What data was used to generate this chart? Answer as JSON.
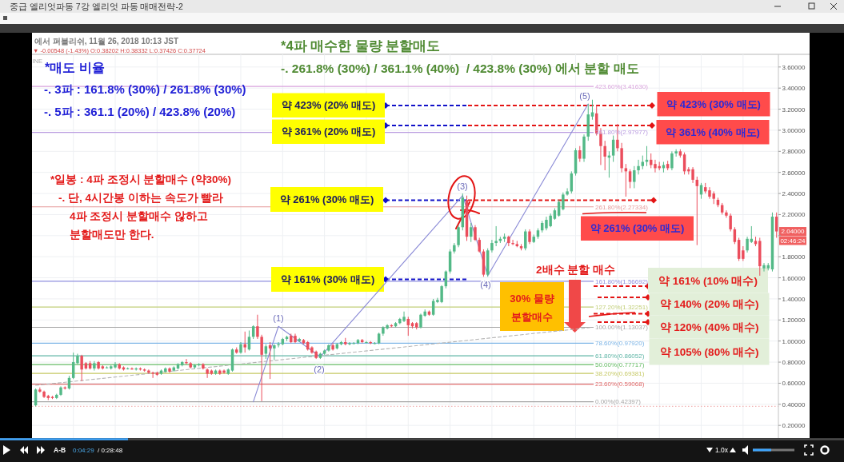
{
  "chart_data": {
    "type": "candlestick",
    "title": "*4파 매수한 물량 분할매도",
    "subtitle": "-. 261.8% (30%) / 361.1% (40%)  / 423.8% (30%) 에서 분할 매도",
    "categories": [
      null,
      null,
      null,
      null,
      null,
      null,
      null,
      null,
      null,
      null,
      null,
      null,
      null,
      null,
      null,
      null,
      null,
      null,
      null,
      null,
      null,
      null,
      null,
      null,
      null,
      null,
      null,
      null,
      null,
      null,
      null,
      null,
      null,
      null,
      null,
      null,
      null,
      null,
      null,
      null,
      null,
      null,
      null,
      null,
      null,
      null,
      null,
      null,
      null,
      null,
      null,
      null,
      null,
      null,
      null,
      null,
      null,
      null,
      null,
      null,
      null,
      null,
      null,
      null,
      null,
      null,
      null,
      null,
      null,
      null,
      null,
      null,
      null,
      null,
      null,
      null,
      null,
      null,
      null,
      null,
      null,
      null,
      null,
      null,
      null,
      null,
      null,
      null,
      null,
      null,
      null,
      null,
      null,
      null,
      null,
      null,
      null,
      null,
      null,
      null,
      null,
      null,
      null,
      null,
      null,
      null,
      null,
      null,
      null,
      null,
      null,
      null,
      null,
      null,
      null,
      null,
      null,
      null,
      null,
      null,
      null,
      null,
      null,
      null,
      null,
      null,
      null,
      null,
      null,
      null,
      null,
      null,
      null,
      null,
      null,
      null,
      null,
      null,
      null,
      null,
      null,
      null,
      null,
      null,
      null,
      null,
      null,
      null,
      null,
      null,
      null,
      null,
      null,
      null,
      null,
      null,
      null,
      null,
      null,
      null,
      null,
      null,
      null,
      null,
      null,
      null,
      null,
      null,
      null,
      null,
      null,
      null,
      null,
      null,
      null,
      null,
      null,
      null
    ],
    "ohlc": [
      [
        0.39,
        0.55,
        0.38,
        0.54
      ],
      [
        0.54,
        0.56,
        0.51,
        0.52
      ],
      [
        0.52,
        0.53,
        0.46,
        0.47
      ],
      [
        0.48,
        0.49,
        0.44,
        0.46
      ],
      [
        0.47,
        0.48,
        0.45,
        0.46
      ],
      [
        0.46,
        0.5,
        0.45,
        0.49
      ],
      [
        0.49,
        0.57,
        0.48,
        0.56
      ],
      [
        0.56,
        0.57,
        0.54,
        0.55
      ],
      [
        0.55,
        0.67,
        0.54,
        0.65
      ],
      [
        0.65,
        0.89,
        0.64,
        0.8
      ],
      [
        0.79,
        0.88,
        0.78,
        0.86
      ],
      [
        0.86,
        0.87,
        0.62,
        0.73
      ],
      [
        0.79,
        0.8,
        0.73,
        0.74
      ],
      [
        0.79,
        0.81,
        0.73,
        0.74
      ],
      [
        0.74,
        0.81,
        0.72,
        0.79
      ],
      [
        0.8,
        0.81,
        0.73,
        0.74
      ],
      [
        0.76,
        0.77,
        0.73,
        0.74
      ],
      [
        0.75,
        0.76,
        0.74,
        0.75
      ],
      [
        0.74,
        0.77,
        0.73,
        0.76
      ],
      [
        0.75,
        0.8,
        0.74,
        0.78
      ],
      [
        0.78,
        0.79,
        0.73,
        0.74
      ],
      [
        0.75,
        0.76,
        0.72,
        0.73
      ],
      [
        0.74,
        0.75,
        0.73,
        0.74
      ],
      [
        0.74,
        0.75,
        0.73,
        0.73
      ],
      [
        0.73,
        0.75,
        0.72,
        0.74
      ],
      [
        0.74,
        0.75,
        0.72,
        0.73
      ],
      [
        0.73,
        0.74,
        0.71,
        0.72
      ],
      [
        0.72,
        0.73,
        0.69,
        0.7
      ],
      [
        0.7,
        0.71,
        0.65,
        0.69
      ],
      [
        0.7,
        0.71,
        0.67,
        0.68
      ],
      [
        0.69,
        0.73,
        0.68,
        0.72
      ],
      [
        0.71,
        0.75,
        0.7,
        0.74
      ],
      [
        0.74,
        0.75,
        0.7,
        0.71
      ],
      [
        0.72,
        0.76,
        0.71,
        0.75
      ],
      [
        0.74,
        0.79,
        0.73,
        0.78
      ],
      [
        0.77,
        0.81,
        0.76,
        0.8
      ],
      [
        0.8,
        0.83,
        0.78,
        0.79
      ],
      [
        0.79,
        0.8,
        0.74,
        0.75
      ],
      [
        0.75,
        0.78,
        0.74,
        0.77
      ],
      [
        0.77,
        0.79,
        0.76,
        0.78
      ],
      [
        0.78,
        0.79,
        0.73,
        0.74
      ],
      [
        0.73,
        0.74,
        0.65,
        0.69
      ],
      [
        0.72,
        0.73,
        0.68,
        0.69
      ],
      [
        0.69,
        0.73,
        0.68,
        0.72
      ],
      [
        0.72,
        0.73,
        0.68,
        0.69
      ],
      [
        0.72,
        0.73,
        0.69,
        0.7
      ],
      [
        0.69,
        0.74,
        0.68,
        0.73
      ],
      [
        0.72,
        0.93,
        0.71,
        0.92
      ],
      [
        0.92,
        0.94,
        0.88,
        0.89
      ],
      [
        0.89,
        0.99,
        0.88,
        0.97
      ],
      [
        0.97,
        1.09,
        0.89,
        0.94
      ],
      [
        0.92,
        1.1,
        0.91,
        1.04
      ],
      [
        1.04,
        1.15,
        1.02,
        1.14
      ],
      [
        1.14,
        1.25,
        1.02,
        1.04
      ],
      [
        1.04,
        1.06,
        0.43,
        0.87
      ],
      [
        0.88,
        0.97,
        0.83,
        0.95
      ],
      [
        0.96,
        0.99,
        0.64,
        0.93
      ],
      [
        0.93,
        0.97,
        0.82,
        0.96
      ],
      [
        0.96,
        0.99,
        0.94,
        0.97
      ],
      [
        0.97,
        1.03,
        0.96,
        1.02
      ],
      [
        1.02,
        1.05,
        1.0,
        1.04
      ],
      [
        1.05,
        1.07,
        0.98,
        0.99
      ],
      [
        1.05,
        1.07,
        0.98,
        0.99
      ],
      [
        1.0,
        1.03,
        0.99,
        1.02
      ],
      [
        1.01,
        1.02,
        0.97,
        0.98
      ],
      [
        0.99,
        1.0,
        0.91,
        0.92
      ],
      [
        0.94,
        0.95,
        0.88,
        0.89
      ],
      [
        0.9,
        0.91,
        0.83,
        0.84
      ],
      [
        0.84,
        0.89,
        0.83,
        0.88
      ],
      [
        0.88,
        0.92,
        0.87,
        0.91
      ],
      [
        0.91,
        0.97,
        0.9,
        0.96
      ],
      [
        0.96,
        0.98,
        0.91,
        0.92
      ],
      [
        0.93,
        0.98,
        0.92,
        0.97
      ],
      [
        0.97,
        1.0,
        0.96,
        0.99
      ],
      [
        0.99,
        1.03,
        0.96,
        0.97
      ],
      [
        0.97,
        0.99,
        0.96,
        0.98
      ],
      [
        0.98,
        0.99,
        0.97,
        0.98
      ],
      [
        0.98,
        1.02,
        0.97,
        1.01
      ],
      [
        1.01,
        1.02,
        0.98,
        0.99
      ],
      [
        0.99,
        1.0,
        0.98,
        0.99
      ],
      [
        0.99,
        1.0,
        0.97,
        0.98
      ],
      [
        0.98,
        0.99,
        0.97,
        0.98
      ],
      [
        0.98,
        1.08,
        0.97,
        1.07
      ],
      [
        1.07,
        1.14,
        1.05,
        1.13
      ],
      [
        1.12,
        1.16,
        1.11,
        1.15
      ],
      [
        1.15,
        1.16,
        1.13,
        1.14
      ],
      [
        1.14,
        1.18,
        1.13,
        1.17
      ],
      [
        1.17,
        1.22,
        1.16,
        1.21
      ],
      [
        1.19,
        1.28,
        1.18,
        1.23
      ],
      [
        1.21,
        1.23,
        1.05,
        1.15
      ],
      [
        1.17,
        1.18,
        1.12,
        1.14
      ],
      [
        1.17,
        1.18,
        1.11,
        1.13
      ],
      [
        1.13,
        1.26,
        1.12,
        1.25
      ],
      [
        1.24,
        1.3,
        1.23,
        1.28
      ],
      [
        1.28,
        1.29,
        1.24,
        1.25
      ],
      [
        1.25,
        1.4,
        1.24,
        1.38
      ],
      [
        1.37,
        1.41,
        1.36,
        1.39
      ],
      [
        1.37,
        1.53,
        1.36,
        1.52
      ],
      [
        1.52,
        1.67,
        1.5,
        1.66
      ],
      [
        1.66,
        1.87,
        1.64,
        1.85
      ],
      [
        1.85,
        1.93,
        1.83,
        1.91
      ],
      [
        1.91,
        2.1,
        1.89,
        2.08
      ],
      [
        2.08,
        2.4,
        2.05,
        2.36
      ],
      [
        2.34,
        2.38,
        1.95,
        1.99
      ],
      [
        1.99,
        2.12,
        1.94,
        2.08
      ],
      [
        2.08,
        2.1,
        1.95,
        1.96
      ],
      [
        1.96,
        1.98,
        1.84,
        1.85
      ],
      [
        1.85,
        1.87,
        1.61,
        1.63
      ],
      [
        1.63,
        1.88,
        1.61,
        1.86
      ],
      [
        1.86,
        1.96,
        1.84,
        1.93
      ],
      [
        1.93,
        2.09,
        1.9,
        1.95
      ],
      [
        1.95,
        1.99,
        1.93,
        1.97
      ],
      [
        1.97,
        2.02,
        1.94,
        1.99
      ],
      [
        1.99,
        2.0,
        1.9,
        1.93
      ],
      [
        1.93,
        1.96,
        1.91,
        1.92
      ],
      [
        1.92,
        1.95,
        1.89,
        1.9
      ],
      [
        1.9,
        1.92,
        1.86,
        1.88
      ],
      [
        1.88,
        2.06,
        1.86,
        2.04
      ],
      [
        2.04,
        2.06,
        1.92,
        1.94
      ],
      [
        1.94,
        2.01,
        1.93,
        1.99
      ],
      [
        1.99,
        2.07,
        1.97,
        2.05
      ],
      [
        2.05,
        2.14,
        2.03,
        2.12
      ],
      [
        2.07,
        2.18,
        2.05,
        2.15
      ],
      [
        2.09,
        2.21,
        2.08,
        2.19
      ],
      [
        2.16,
        2.26,
        2.15,
        2.24
      ],
      [
        2.19,
        2.34,
        2.18,
        2.32
      ],
      [
        2.25,
        2.41,
        2.24,
        2.39
      ],
      [
        2.39,
        2.45,
        2.38,
        2.42
      ],
      [
        2.42,
        2.61,
        2.4,
        2.59
      ],
      [
        2.59,
        2.83,
        2.57,
        2.81
      ],
      [
        2.81,
        2.85,
        2.7,
        2.73
      ],
      [
        2.73,
        2.96,
        2.7,
        2.94
      ],
      [
        2.94,
        3.25,
        2.9,
        3.15
      ],
      [
        3.13,
        3.29,
        3.1,
        3.17
      ],
      [
        3.16,
        3.24,
        2.95,
        2.97
      ],
      [
        2.97,
        3.02,
        2.67,
        2.85
      ],
      [
        2.85,
        2.9,
        2.62,
        2.75
      ],
      [
        2.74,
        2.8,
        2.55,
        2.76
      ],
      [
        2.76,
        2.95,
        2.7,
        2.91
      ],
      [
        2.91,
        3.06,
        2.8,
        2.83
      ],
      [
        2.83,
        2.88,
        2.6,
        2.64
      ],
      [
        2.64,
        2.68,
        2.37,
        2.61
      ],
      [
        2.61,
        2.63,
        2.45,
        2.51
      ],
      [
        2.51,
        2.66,
        2.45,
        2.62
      ],
      [
        2.62,
        2.72,
        2.58,
        2.66
      ],
      [
        2.66,
        2.76,
        2.63,
        2.7
      ],
      [
        2.7,
        2.85,
        2.66,
        2.72
      ],
      [
        2.72,
        2.78,
        2.64,
        2.67
      ],
      [
        2.68,
        2.72,
        2.6,
        2.64
      ],
      [
        2.66,
        2.7,
        2.62,
        2.64
      ],
      [
        2.64,
        2.7,
        2.6,
        2.67
      ],
      [
        2.68,
        2.71,
        2.62,
        2.64
      ],
      [
        2.64,
        2.8,
        2.62,
        2.78
      ],
      [
        2.78,
        2.82,
        2.75,
        2.8
      ],
      [
        2.8,
        2.82,
        2.74,
        2.76
      ],
      [
        2.77,
        2.79,
        2.58,
        2.61
      ],
      [
        2.63,
        2.65,
        2.58,
        2.61
      ],
      [
        2.63,
        2.65,
        2.5,
        2.53
      ],
      [
        2.53,
        2.56,
        1.91,
        2.47
      ],
      [
        2.39,
        2.5,
        2.35,
        2.48
      ],
      [
        2.46,
        2.5,
        2.4,
        2.42
      ],
      [
        2.43,
        2.46,
        2.35,
        2.37
      ],
      [
        2.4,
        2.42,
        2.3,
        2.35
      ],
      [
        2.34,
        2.36,
        2.27,
        2.29
      ],
      [
        2.29,
        2.31,
        2.2,
        2.22
      ],
      [
        2.22,
        2.24,
        2.17,
        2.19
      ],
      [
        2.19,
        2.21,
        2.04,
        2.06
      ],
      [
        2.06,
        2.08,
        1.92,
        1.94
      ],
      [
        1.96,
        1.98,
        1.76,
        1.78
      ],
      [
        1.86,
        1.9,
        1.76,
        1.78
      ],
      [
        1.86,
        1.99,
        1.84,
        1.97
      ],
      [
        1.94,
        2.09,
        1.93,
        1.97
      ],
      [
        1.95,
        1.99,
        1.9,
        1.92
      ],
      [
        1.95,
        1.98,
        1.62,
        1.71
      ],
      [
        1.69,
        1.74,
        1.66,
        1.72
      ],
      [
        1.69,
        1.74,
        1.67,
        1.72
      ],
      [
        1.68,
        2.22,
        1.66,
        2.18
      ],
      [
        2.18,
        2.22,
        1.98,
        2.04
      ]
    ],
    "series": [
      {
        "type": "line",
        "color": "#8a8ad6",
        "values": [
          null,
          null,
          null,
          null,
          null,
          null,
          null,
          null,
          null,
          null,
          null,
          null,
          null,
          null,
          null,
          null,
          null,
          null,
          null,
          null,
          null,
          null,
          null,
          null,
          null,
          null,
          null,
          null,
          null,
          null,
          null,
          null,
          null,
          null,
          null,
          null,
          null,
          null,
          null,
          null,
          null,
          null,
          null,
          null,
          null,
          null,
          null,
          null,
          null,
          null,
          null,
          null,
          0.424,
          null,
          null,
          null,
          null,
          null,
          1.14,
          null,
          null,
          null,
          null,
          null,
          null,
          null,
          null,
          null,
          0.85,
          null,
          null,
          null,
          null,
          null,
          null,
          null,
          null,
          null,
          null,
          null,
          null,
          null,
          null,
          null,
          null,
          null,
          null,
          null,
          null,
          null,
          null,
          null,
          null,
          null,
          null,
          null,
          null,
          null,
          null,
          null,
          null,
          null,
          2.38,
          null,
          null,
          null,
          null,
          null,
          1.62,
          null,
          null,
          null,
          null,
          null,
          null,
          null,
          null,
          null,
          null,
          null,
          null,
          null,
          null,
          null,
          null,
          null,
          null,
          null,
          null,
          null,
          null,
          null,
          3.25,
          null,
          null,
          null,
          null,
          null,
          null,
          null,
          null,
          null,
          null,
          null,
          null,
          null,
          null,
          null,
          null,
          null,
          null,
          null,
          null,
          null,
          null,
          null,
          null,
          null,
          null,
          null,
          null,
          null,
          null,
          null,
          null,
          null,
          null,
          null,
          null,
          null,
          null,
          null,
          null,
          null,
          null,
          null,
          null,
          null
        ]
      },
      {
        "type": "line",
        "color": "#b4b4b4",
        "line_style": "dashed",
        "values": [
          0.58,
          null,
          null,
          null,
          null,
          null,
          null,
          null,
          null,
          null,
          null,
          null,
          null,
          null,
          null,
          null,
          null,
          null,
          null,
          null,
          null,
          null,
          null,
          null,
          null,
          null,
          null,
          null,
          null,
          null,
          null,
          null,
          null,
          null,
          null,
          null,
          null,
          null,
          null,
          null,
          null,
          null,
          null,
          null,
          null,
          null,
          null,
          null,
          null,
          null,
          null,
          null,
          null,
          null,
          null,
          null,
          null,
          null,
          null,
          null,
          null,
          null,
          null,
          null,
          null,
          null,
          null,
          null,
          null,
          null,
          null,
          null,
          null,
          null,
          null,
          null,
          null,
          null,
          null,
          null,
          null,
          null,
          null,
          null,
          null,
          null,
          null,
          null,
          null,
          null,
          null,
          null,
          null,
          null,
          null,
          null,
          null,
          null,
          null,
          null,
          null,
          null,
          null,
          null,
          null,
          null,
          null,
          null,
          null,
          null,
          null,
          null,
          null,
          null,
          null,
          null,
          null,
          null,
          null,
          null,
          null,
          null,
          null,
          null,
          null,
          null,
          null,
          null,
          null,
          null,
          null,
          null,
          null,
          1.13,
          null,
          null,
          null,
          null,
          null,
          null,
          null,
          null,
          null,
          null,
          null,
          null,
          null,
          null,
          null,
          null,
          null,
          null,
          null,
          null,
          null,
          null,
          null,
          null,
          null,
          null,
          null,
          null,
          null,
          null,
          null,
          null,
          null,
          null,
          null,
          null,
          null,
          null,
          null,
          null,
          null,
          null,
          null,
          null
        ]
      }
    ],
    "ylim": [
      0.08,
      3.72
    ],
    "yticks": [
      {
        "value": 0.2,
        "label": "0.20000"
      },
      {
        "value": 0.4,
        "label": "0.40000"
      },
      {
        "value": 0.6,
        "label": "0.60000"
      },
      {
        "value": 0.8,
        "label": "0.80000"
      },
      {
        "value": 1.0,
        "label": "1.00000"
      },
      {
        "value": 1.2,
        "label": "1.20000"
      },
      {
        "value": 1.4,
        "label": "1.40000"
      },
      {
        "value": 1.6,
        "label": "1.60000"
      },
      {
        "value": 1.8,
        "label": "1.80000"
      },
      {
        "value": 2.0,
        "label": null
      },
      {
        "value": 2.2,
        "label": "2.20000"
      },
      {
        "value": 2.4,
        "label": "2.40000"
      },
      {
        "value": 2.6,
        "label": "2.60000"
      },
      {
        "value": 2.8,
        "label": "2.80000"
      },
      {
        "value": 3.0,
        "label": "3.00000"
      },
      {
        "value": 3.2,
        "label": "3.20000"
      },
      {
        "value": 3.4,
        "label": "3.40000"
      },
      {
        "value": 3.6,
        "label": "3.60000"
      }
    ],
    "grid": true,
    "tick_labels": "y",
    "ref_lines": [
      {
        "axis": "y",
        "value": 3.4163,
        "label": "423.60%(3.41630)",
        "color": "#d9a3dd"
      },
      {
        "axis": "y",
        "value": 2.97977,
        "label": "361.80%(2.97977)",
        "color": "#b99be0"
      },
      {
        "axis": "y",
        "value": 2.27334,
        "label": "261.80%(2.27334)",
        "color": "#e69a9a"
      },
      {
        "axis": "y",
        "value": 1.56692,
        "label": "161.80%(1.56692)",
        "color": "#8f8fdf"
      },
      {
        "axis": "y",
        "value": 1.32251,
        "label": "127.20%(1.32251)",
        "color": "#c2cf78"
      },
      {
        "axis": "y",
        "value": 1.13037,
        "label": "100.00%(1.13037)",
        "color": "#a6a6a6"
      },
      {
        "axis": "y",
        "value": 0.9792,
        "label": "78.60%(0.97920)",
        "color": "#7cb4e6"
      },
      {
        "axis": "y",
        "value": 0.86052,
        "label": "61.80%(0.86052)",
        "color": "#5fb5a6"
      },
      {
        "axis": "y",
        "value": 0.77717,
        "label": "50.00%(0.77717)",
        "color": "#66bb66"
      },
      {
        "axis": "y",
        "value": 0.69381,
        "label": "38.20%(0.69381)",
        "color": "#c6c965"
      },
      {
        "axis": "y",
        "value": 0.59068,
        "label": "23.60%(0.59068)",
        "color": "#e06b6b"
      },
      {
        "axis": "y",
        "value": 0.42397,
        "label": "0.00%(0.42397)",
        "color": "#a6a6a6"
      },
      {
        "axis": "y",
        "value": 0.38,
        "color": "#f2b4b4",
        "line_style": "dotted"
      }
    ],
    "annotations": [
      "중급 엘리엇파동 7강 엘리엇 파동 매매전략-2",
      "에서 퍼블리쉬, 11월 26, 2018 10:13 JST",
      "▼ -0.00548 (-1.43%) O:0.38202 H:0.38332 L:0.37426 C:0.37724",
      "INE",
      "*매도 비율",
      "-. 3파 : 161.8% (30%) / 261.8% (30%)",
      "-. 5파 : 361.1 (20%) / 423.8% (20%)",
      "*일봉 : 4파 조정시 분할매수 (약30%)",
      "-. 단, 4시간봉 이하는 속도가 빨라",
      "4파 조정시 분할매수 않하고",
      "분할매도만 한다.",
      "약 423% (20% 매도)",
      "약 361% (20% 매도)",
      "약 261% (30% 매도)",
      "약 161% (30% 매도)",
      "약 423% (30% 매도)",
      "약 361% (40% 매도)",
      "약 261% (30% 매도)",
      "2배수 분할 매수",
      "30% 물량",
      "분할매수",
      "약 161% (10% 매수)",
      "약 140% (20% 매수)",
      "약 120% (40% 매수)",
      "약 105% (80% 매수)",
      {
        "text": "2.04000",
        "y": 2.04
      },
      "02:46:24",
      "A-B",
      "0:04:29",
      "/ 0:28:48",
      "1.0x",
      {
        "text": "(1)",
        "y": 1.14
      },
      {
        "text": "(2)",
        "y": 0.85
      },
      {
        "text": "(3)",
        "y": 2.38
      },
      {
        "text": "(4)",
        "y": 1.62
      },
      {
        "text": "(5)",
        "y": 3.25
      }
    ]
  }
}
